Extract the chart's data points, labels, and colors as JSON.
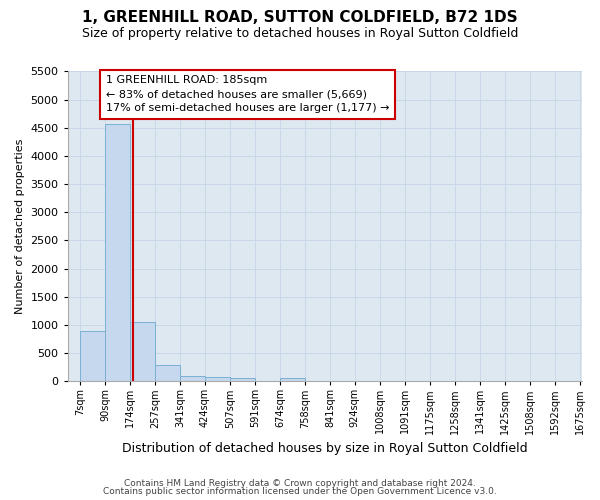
{
  "title": "1, GREENHILL ROAD, SUTTON COLDFIELD, B72 1DS",
  "subtitle": "Size of property relative to detached houses in Royal Sutton Coldfield",
  "xlabel": "Distribution of detached houses by size in Royal Sutton Coldfield",
  "ylabel": "Number of detached properties",
  "footnote1": "Contains HM Land Registry data © Crown copyright and database right 2024.",
  "footnote2": "Contains public sector information licensed under the Open Government Licence v3.0.",
  "annotation_line1": "1 GREENHILL ROAD: 185sqm",
  "annotation_line2": "← 83% of detached houses are smaller (5,669)",
  "annotation_line3": "17% of semi-detached houses are larger (1,177) →",
  "subject_size": 185,
  "bar_left_edges": [
    7,
    90,
    174,
    257,
    341,
    424,
    507,
    591,
    674,
    758,
    841,
    924,
    1008,
    1091,
    1175,
    1258,
    1341,
    1425,
    1508,
    1592
  ],
  "bar_heights": [
    900,
    4560,
    1060,
    290,
    90,
    80,
    60,
    0,
    55,
    0,
    0,
    0,
    0,
    0,
    0,
    0,
    0,
    0,
    0,
    0
  ],
  "all_tick_edges": [
    7,
    90,
    174,
    257,
    341,
    424,
    507,
    591,
    674,
    758,
    841,
    924,
    1008,
    1091,
    1175,
    1258,
    1341,
    1425,
    1508,
    1592,
    1675
  ],
  "bin_width": 83,
  "bar_color": "#c5d8ed",
  "bar_edge_color": "#7aafd4",
  "vline_color": "#cc0000",
  "grid_color": "#c8d8e8",
  "bg_color": "#dde8f0",
  "ylim_max": 5500,
  "yticks": [
    0,
    500,
    1000,
    1500,
    2000,
    2500,
    3000,
    3500,
    4000,
    4500,
    5000,
    5500
  ],
  "title_fontsize": 11,
  "subtitle_fontsize": 9,
  "xlabel_fontsize": 9,
  "ylabel_fontsize": 8,
  "tick_fontsize": 7,
  "ytick_fontsize": 8,
  "footnote_fontsize": 6.5,
  "annot_fontsize": 8
}
